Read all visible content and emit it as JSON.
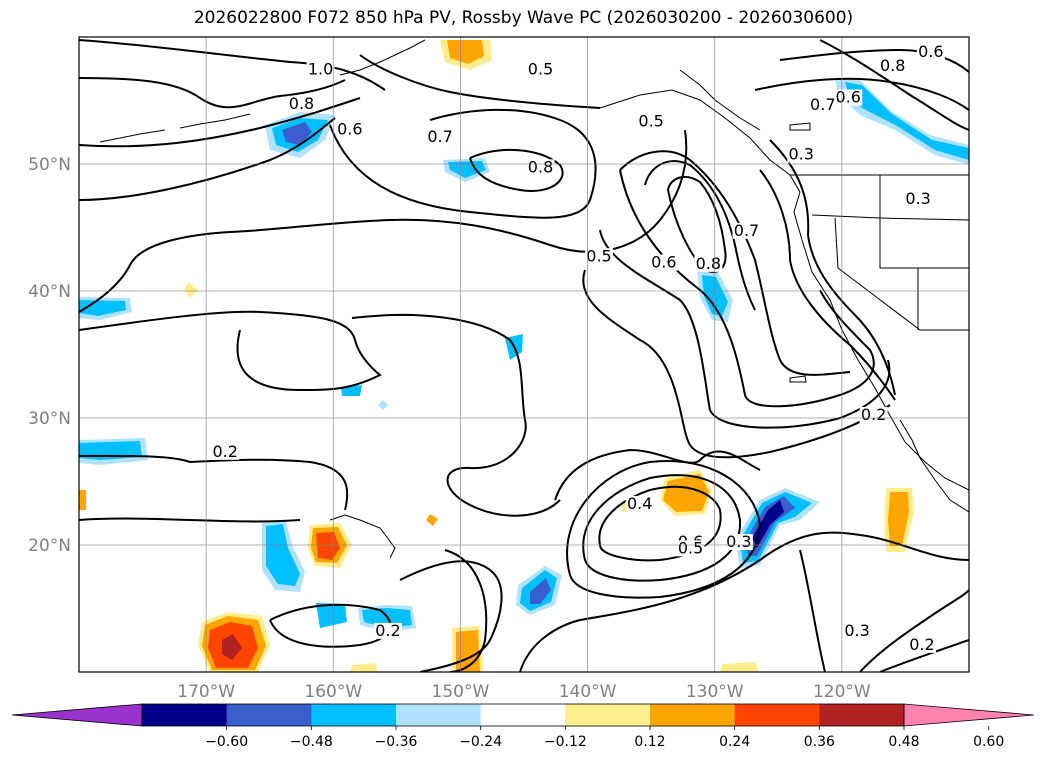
{
  "chart_data": {
    "type": "map-contour",
    "title": "2026022800 F072 850 hPa PV, Rossby Wave PC (2026030200 - 2026030600)",
    "lat_range": [
      10,
      60
    ],
    "lon_range": [
      -180,
      -110
    ],
    "lat_ticks": [
      {
        "lat": 50,
        "label": "50°N"
      },
      {
        "lat": 40,
        "label": "40°N"
      },
      {
        "lat": 30,
        "label": "30°N"
      },
      {
        "lat": 20,
        "label": "20°N"
      }
    ],
    "lon_ticks": [
      {
        "lon": -170,
        "label": "170°W"
      },
      {
        "lon": -160,
        "label": "160°W"
      },
      {
        "lon": -150,
        "label": "150°W"
      },
      {
        "lon": -140,
        "label": "140°W"
      },
      {
        "lon": -130,
        "label": "130°W"
      },
      {
        "lon": -120,
        "label": "120°W"
      }
    ],
    "colorbar": {
      "colors": [
        "#9a32cd",
        "#00008b",
        "#3a5fcd",
        "#00bfff",
        "#b0e2ff",
        "#ffffff",
        "#ffec8b",
        "#ffa500",
        "#ff4500",
        "#b22222",
        "#ff82ab"
      ],
      "ticks": [
        "−0.60",
        "−0.48",
        "−0.36",
        "−0.24",
        "−0.12",
        "0.12",
        "0.24",
        "0.36",
        "0.48",
        "0.60"
      ]
    },
    "contour_labels": [
      {
        "text": "1.0",
        "lon": -161,
        "lat": 57.2
      },
      {
        "text": "0.5",
        "lon": -143.7,
        "lat": 57.2
      },
      {
        "text": "0.8",
        "lon": -162.5,
        "lat": 54.5
      },
      {
        "text": "0.6",
        "lon": -158.7,
        "lat": 52.5
      },
      {
        "text": "0.7",
        "lon": -151.6,
        "lat": 51.9
      },
      {
        "text": "0.5",
        "lon": -135,
        "lat": 53.1
      },
      {
        "text": "0.8",
        "lon": -143.7,
        "lat": 49.5
      },
      {
        "text": "0.3",
        "lon": -123.2,
        "lat": 50.5
      },
      {
        "text": "0.8",
        "lon": -116,
        "lat": 57.5
      },
      {
        "text": "0.6",
        "lon": -113,
        "lat": 58.6
      },
      {
        "text": "0.6",
        "lon": -119.5,
        "lat": 55
      },
      {
        "text": "0.7",
        "lon": -121.5,
        "lat": 54.4
      },
      {
        "text": "0.5",
        "lon": -139.1,
        "lat": 42.5
      },
      {
        "text": "0.6",
        "lon": -134,
        "lat": 42
      },
      {
        "text": "0.7",
        "lon": -127.5,
        "lat": 44.5
      },
      {
        "text": "0.8",
        "lon": -130.5,
        "lat": 41.9
      },
      {
        "text": "0.3",
        "lon": -114,
        "lat": 47
      },
      {
        "text": "0.2",
        "lon": -168.5,
        "lat": 27.1
      },
      {
        "text": "0.2",
        "lon": -117.5,
        "lat": 30
      },
      {
        "text": "0.4",
        "lon": -135.9,
        "lat": 23
      },
      {
        "text": "0.6",
        "lon": -131.9,
        "lat": 20
      },
      {
        "text": "0.5",
        "lon": -131.9,
        "lat": 19.5
      },
      {
        "text": "0.3",
        "lon": -128.1,
        "lat": 20
      },
      {
        "text": "0.2",
        "lon": -155.7,
        "lat": 13
      },
      {
        "text": "0.3",
        "lon": -118.8,
        "lat": 13
      },
      {
        "text": "0.2",
        "lon": -113.7,
        "lat": 11.9
      }
    ]
  }
}
